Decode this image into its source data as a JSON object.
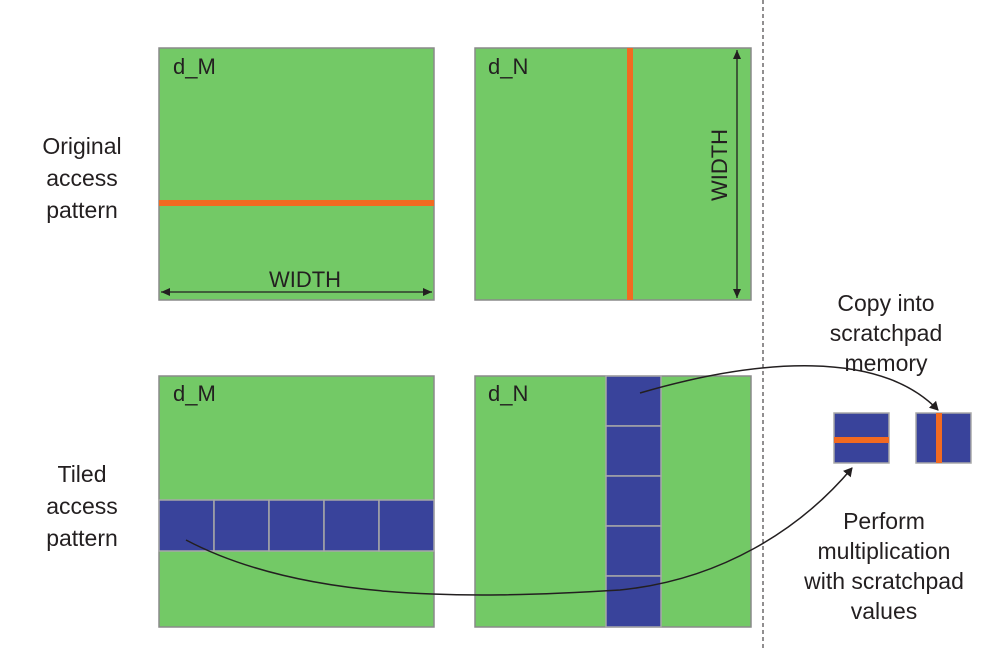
{
  "row_labels": {
    "original": [
      "Original",
      "access",
      "pattern"
    ],
    "tiled": [
      "Tiled",
      "access",
      "pattern"
    ]
  },
  "matrices": {
    "orig_m": "d_M",
    "orig_n": "d_N",
    "tiled_m": "d_M",
    "tiled_n": "d_N"
  },
  "dimension_labels": {
    "width_horizontal": "WIDTH",
    "width_vertical": "WIDTH"
  },
  "annotations": {
    "copy": [
      "Copy into",
      "scratchpad",
      "memory"
    ],
    "perform": [
      "Perform",
      "multiplication",
      "with scratchpad",
      "values"
    ]
  },
  "tile_count": 5,
  "colors": {
    "matrix_fill": "#73c966",
    "matrix_border": "#8a8a8a",
    "access_line": "#f26a21",
    "tile_fill": "#39439b",
    "tile_border": "#a8a8a8",
    "text": "#231f20",
    "arrow": "#231f20"
  }
}
